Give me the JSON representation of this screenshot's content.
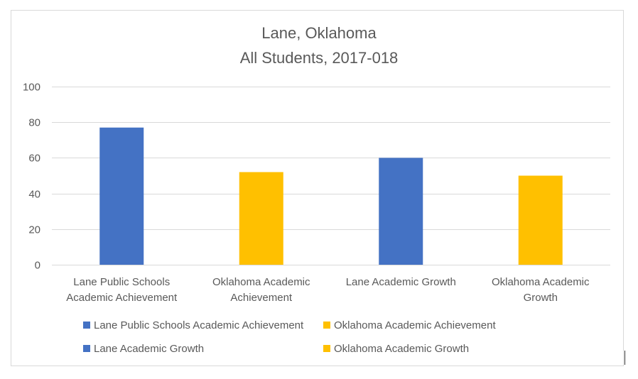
{
  "chart_data": {
    "type": "bar",
    "title": [
      "Lane, Oklahoma",
      "All Students, 2017-018"
    ],
    "categories": [
      [
        "Lane Public Schools",
        "Academic Achievement"
      ],
      [
        "Oklahoma Academic",
        "Achievement"
      ],
      [
        "Lane Academic Growth"
      ],
      [
        "Oklahoma Academic",
        "Growth"
      ]
    ],
    "series": [
      {
        "name": "Lane Public Schools Academic Achievement",
        "color": "#4472c4",
        "category_index": 0,
        "value": 77
      },
      {
        "name": "Oklahoma Academic Achievement",
        "color": "#ffc000",
        "category_index": 1,
        "value": 52
      },
      {
        "name": "Lane Academic Growth",
        "color": "#4472c4",
        "category_index": 2,
        "value": 60
      },
      {
        "name": "Oklahoma Academic Growth",
        "color": "#ffc000",
        "category_index": 3,
        "value": 50
      }
    ],
    "ylim": [
      0,
      100
    ],
    "yticks": [
      0,
      20,
      40,
      60,
      80,
      100
    ],
    "grid": true,
    "legend_position": "bottom"
  },
  "colors": {
    "lane": "#4472c4",
    "oklahoma": "#ffc000",
    "gridline": "#d9d9d9",
    "text": "#595959"
  }
}
